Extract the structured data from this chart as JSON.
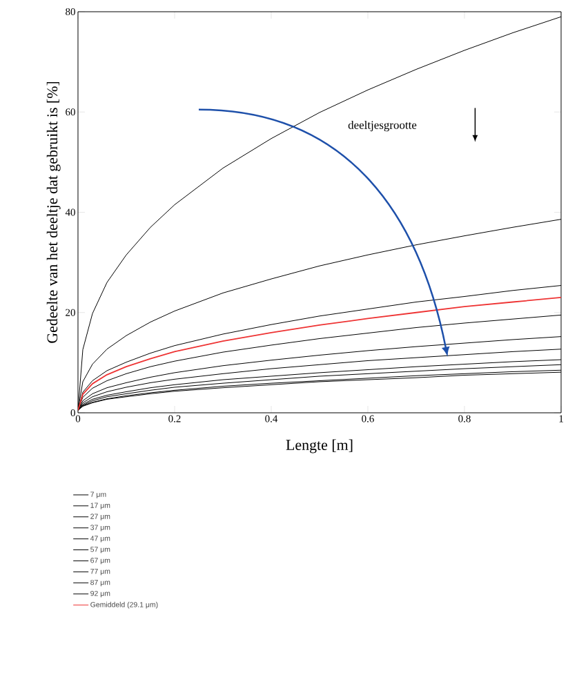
{
  "chart_data": {
    "type": "line",
    "xlabel": "Lengte [m]",
    "ylabel": "Gedeelte van het deeltje dat gebruikt is [%]",
    "annotations": [
      "deeltjesgrootte"
    ],
    "x": [
      0,
      0.01,
      0.03,
      0.06,
      0.1,
      0.15,
      0.2,
      0.3,
      0.4,
      0.5,
      0.6,
      0.7,
      0.8,
      0.9,
      1
    ],
    "xlim": [
      0,
      1
    ],
    "xticks": [
      0,
      0.2,
      0.4,
      0.6,
      0.8,
      1
    ],
    "ylim": [
      0,
      80
    ],
    "yticks": [
      0,
      20,
      40,
      60,
      80
    ],
    "legend": "bottom",
    "series": [
      {
        "name": "7 μm",
        "color": "#000000",
        "values": [
          0.5,
          12.6,
          19.8,
          26,
          31.5,
          37,
          41.5,
          48.8,
          54.7,
          59.9,
          64.4,
          68.5,
          72.3,
          75.8,
          79
        ]
      },
      {
        "name": "17 μm",
        "color": "#000000",
        "values": [
          0.5,
          6.2,
          9.7,
          12.7,
          15.4,
          18.1,
          20.3,
          23.9,
          26.7,
          29.3,
          31.5,
          33.5,
          35.3,
          37,
          38.6
        ]
      },
      {
        "name": "27 μm",
        "color": "#000000",
        "values": [
          0.5,
          4.1,
          6.4,
          8.4,
          10.1,
          11.9,
          13.4,
          15.7,
          17.6,
          19.3,
          20.7,
          22.1,
          23.2,
          24.4,
          25.4
        ]
      },
      {
        "name": "37 μm",
        "color": "#000000",
        "values": [
          0.5,
          3.1,
          4.9,
          6.4,
          7.8,
          9.2,
          10.3,
          12.1,
          13.5,
          14.8,
          15.9,
          17,
          17.9,
          18.7,
          19.5
        ]
      },
      {
        "name": "47 μm",
        "color": "#000000",
        "values": [
          0.5,
          2.4,
          3.8,
          5,
          6,
          7.1,
          8,
          9.4,
          10.5,
          11.5,
          12.4,
          13.2,
          13.9,
          14.6,
          15.2
        ]
      },
      {
        "name": "57 μm",
        "color": "#000000",
        "values": [
          0.5,
          2,
          3.2,
          4.2,
          5.1,
          6,
          6.7,
          7.8,
          8.8,
          9.6,
          10.4,
          11,
          11.6,
          12.2,
          12.7
        ]
      },
      {
        "name": "67 μm",
        "color": "#000000",
        "values": [
          0.5,
          1.7,
          2.7,
          3.5,
          4.2,
          5,
          5.6,
          6.6,
          7.3,
          8,
          8.6,
          9.2,
          9.7,
          10.2,
          10.6
        ]
      },
      {
        "name": "77 μm",
        "color": "#000000",
        "values": [
          0.5,
          1.5,
          2.4,
          3.2,
          3.8,
          4.5,
          5.1,
          5.9,
          6.6,
          7.3,
          7.8,
          8.3,
          8.8,
          9.2,
          9.6
        ]
      },
      {
        "name": "87 μm",
        "color": "#000000",
        "values": [
          0.5,
          1.4,
          2.1,
          2.8,
          3.4,
          4,
          4.5,
          5.3,
          5.9,
          6.4,
          6.9,
          7.4,
          7.8,
          8.2,
          8.5
        ]
      },
      {
        "name": "92 μm",
        "color": "#000000",
        "values": [
          0.5,
          1.3,
          2,
          2.7,
          3.2,
          3.8,
          4.3,
          5,
          5.6,
          6.2,
          6.6,
          7,
          7.5,
          7.8,
          8.1
        ]
      },
      {
        "name": "Gemiddeld (29.1 μm)",
        "color": "#ee3333",
        "values": [
          0.5,
          3.7,
          5.8,
          7.6,
          9.2,
          10.8,
          12.2,
          14.3,
          16,
          17.5,
          18.8,
          20,
          21.2,
          22.1,
          23
        ]
      }
    ]
  }
}
